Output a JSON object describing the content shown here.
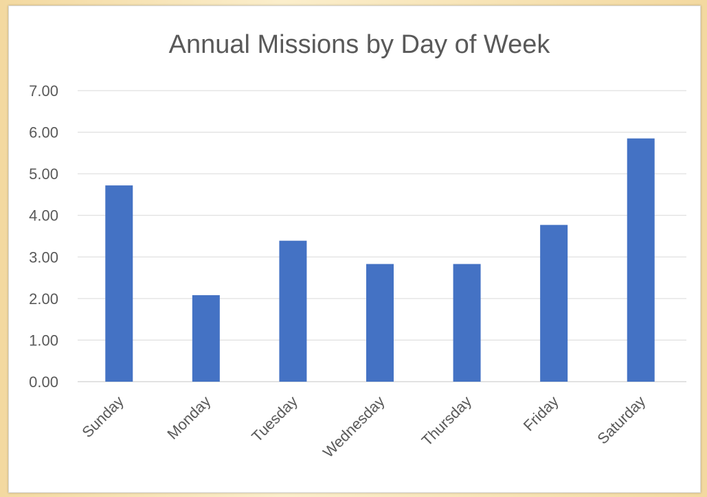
{
  "chart_data": {
    "type": "bar",
    "title": "Annual Missions by Day of Week",
    "xlabel": "",
    "ylabel": "",
    "categories": [
      "Sunday",
      "Monday",
      "Tuesday",
      "Wednesday",
      "Thursday",
      "Friday",
      "Saturday"
    ],
    "values": [
      4.72,
      2.08,
      3.39,
      2.83,
      2.83,
      3.77,
      5.85
    ],
    "ylim": [
      0,
      7
    ],
    "yticks": [
      "0.00",
      "1.00",
      "2.00",
      "3.00",
      "4.00",
      "5.00",
      "6.00",
      "7.00"
    ],
    "grid": true,
    "legend": "none",
    "bar_color": "#4472c4"
  }
}
